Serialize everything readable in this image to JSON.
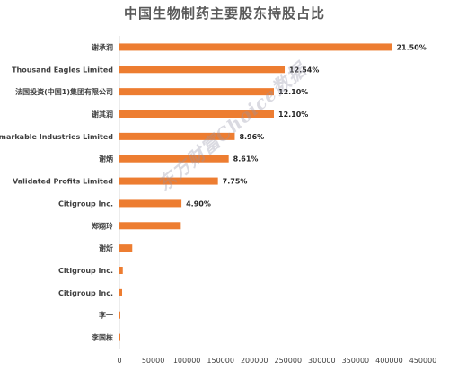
{
  "chart_data": {
    "type": "bar",
    "orientation": "horizontal",
    "title": "中国生物制药主要股东持股占比",
    "xlabel": "",
    "ylabel": "",
    "xlim": [
      0,
      450000
    ],
    "xticks": [
      0,
      50000,
      100000,
      150000,
      200000,
      250000,
      300000,
      350000,
      400000,
      450000
    ],
    "xtick_labels": [
      "0",
      "50000",
      "100000",
      "150000",
      "200000",
      "250000",
      "300000",
      "350000",
      "400000",
      "450000"
    ],
    "grid": false,
    "legend": "none",
    "bar_color": "#ED7D31",
    "categories": [
      "谢承润",
      "Thousand Eagles Limited",
      "法国投资(中国1)集团有限公司",
      "谢其润",
      "Remarkable Industries Limited",
      "谢炳",
      "Validated Profits Limited",
      "Citigroup Inc.",
      "郑翔玲",
      "谢炘",
      "Citigroup Inc.",
      "Citigroup Inc.",
      "李一",
      "李国栋"
    ],
    "values": [
      404000,
      245000,
      229000,
      229000,
      171000,
      162000,
      146000,
      92000,
      91000,
      19000,
      5000,
      4000,
      1000,
      500
    ],
    "data_labels": [
      "21.50%",
      "12.54%",
      "12.10%",
      "12.10%",
      "8.96%",
      "8.61%",
      "7.75%",
      "4.90%",
      "",
      "",
      "",
      "",
      "",
      ""
    ],
    "watermark": "东方财富Choice数据"
  }
}
